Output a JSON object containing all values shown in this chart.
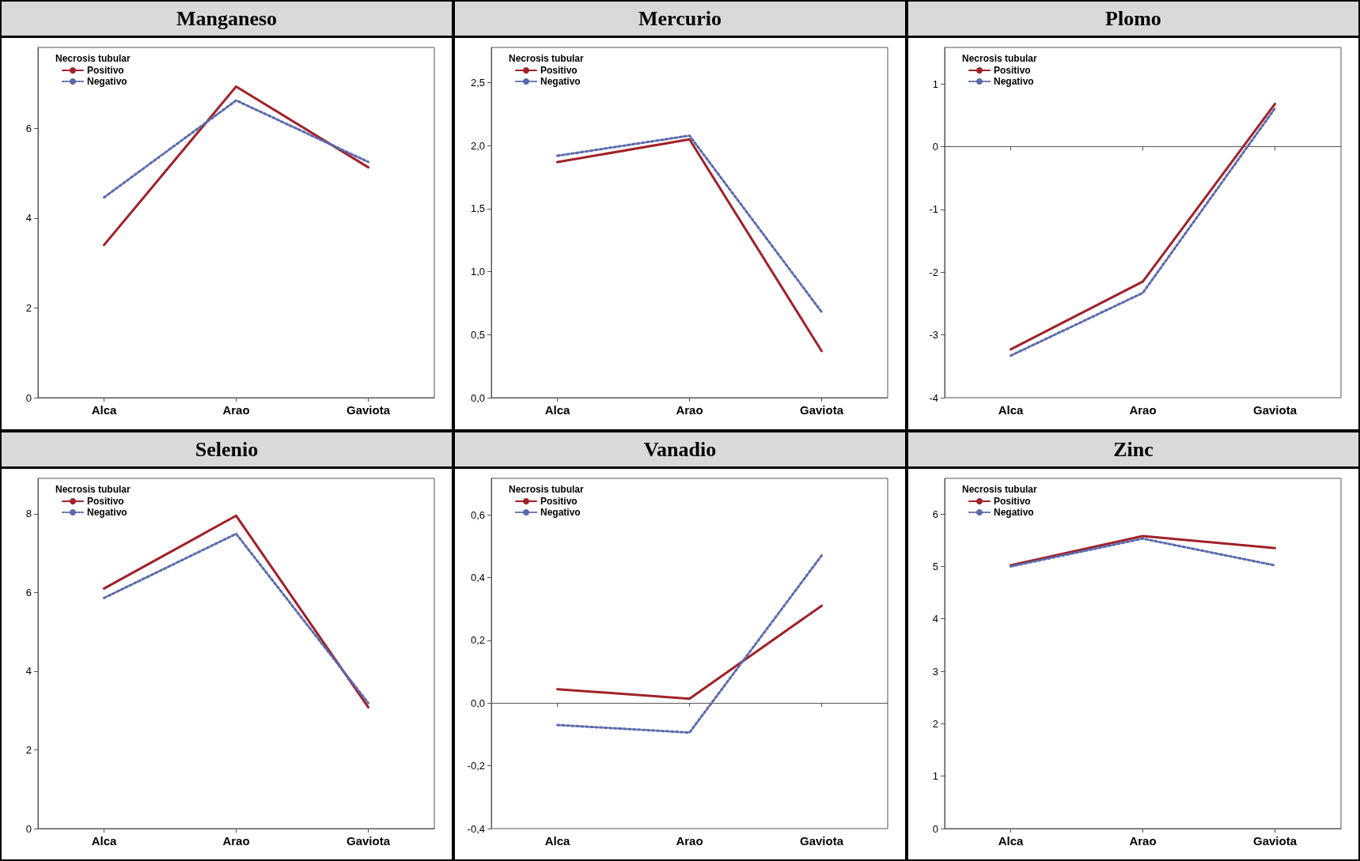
{
  "chart_data": [
    {
      "type": "line",
      "title": "Manganeso",
      "legend_title": "Necrosis tubular",
      "legend": "top left",
      "marker": "none",
      "categories": [
        "Alca",
        "Arao",
        "Gaviota"
      ],
      "ylim": [
        0,
        7.8
      ],
      "yticks": [
        0,
        2,
        4,
        6
      ],
      "series": [
        {
          "name": "Positivo",
          "color": "#a0212a",
          "line_style": "solid",
          "values": [
            3.4,
            6.93,
            5.13
          ]
        },
        {
          "name": "Negativo",
          "color": "#5b6aad",
          "line_style": "dotted",
          "values": [
            4.46,
            6.62,
            5.25
          ]
        }
      ]
    },
    {
      "type": "line",
      "title": "Mercurio",
      "legend_title": "Necrosis tubular",
      "legend": "top left",
      "marker": "none",
      "categories": [
        "Alca",
        "Arao",
        "Gaviota"
      ],
      "ylim": [
        0,
        2.78
      ],
      "yticks": [
        {
          "value": 0,
          "label": "0,0"
        },
        {
          "value": 0.5,
          "label": "0,5"
        },
        {
          "value": 1,
          "label": "1,0"
        },
        {
          "value": 1.5,
          "label": "1,5"
        },
        {
          "value": 2,
          "label": "2,0"
        },
        {
          "value": 2.5,
          "label": "2,5"
        }
      ],
      "series": [
        {
          "name": "Positivo",
          "color": "#a0212a",
          "line_style": "solid",
          "values": [
            1.87,
            2.05,
            0.37
          ]
        },
        {
          "name": "Negativo",
          "color": "#5b6aad",
          "line_style": "dotted",
          "values": [
            1.92,
            2.08,
            0.68
          ]
        }
      ]
    },
    {
      "type": "line",
      "title": "Plomo",
      "legend_title": "Necrosis tubular",
      "legend": "top left",
      "marker": "none",
      "categories": [
        "Alca",
        "Arao",
        "Gaviota"
      ],
      "ylim": [
        -4,
        1.58
      ],
      "yticks": [
        -4,
        -3,
        -2,
        -1,
        0,
        1
      ],
      "series": [
        {
          "name": "Positivo",
          "color": "#a0212a",
          "line_style": "solid",
          "values": [
            -3.23,
            -2.15,
            0.68
          ]
        },
        {
          "name": "Negativo",
          "color": "#5b6aad",
          "line_style": "dotted",
          "values": [
            -3.33,
            -2.33,
            0.61
          ]
        }
      ]
    },
    {
      "type": "line",
      "title": "Selenio",
      "legend_title": "Necrosis tubular",
      "legend": "top left",
      "marker": "none",
      "categories": [
        "Alca",
        "Arao",
        "Gaviota"
      ],
      "ylim": [
        0,
        8.9
      ],
      "yticks": [
        0,
        2,
        4,
        6,
        8
      ],
      "series": [
        {
          "name": "Positivo",
          "color": "#a0212a",
          "line_style": "solid",
          "values": [
            6.1,
            7.95,
            3.08
          ]
        },
        {
          "name": "Negativo",
          "color": "#5b6aad",
          "line_style": "dotted",
          "values": [
            5.86,
            7.49,
            3.19
          ]
        }
      ]
    },
    {
      "type": "line",
      "title": "Vanadio",
      "legend_title": "Necrosis tubular",
      "legend": "top left",
      "marker": "none",
      "categories": [
        "Alca",
        "Arao",
        "Gaviota"
      ],
      "ylim": [
        -0.4,
        0.716
      ],
      "yticks": [
        {
          "value": -0.4,
          "label": "-0,4"
        },
        {
          "value": -0.2,
          "label": "-0,2"
        },
        {
          "value": 0,
          "label": "0,0"
        },
        {
          "value": 0.2,
          "label": "0,2"
        },
        {
          "value": 0.4,
          "label": "0,4"
        },
        {
          "value": 0.6,
          "label": "0,6"
        }
      ],
      "series": [
        {
          "name": "Positivo",
          "color": "#a0212a",
          "line_style": "solid",
          "values": [
            0.044,
            0.014,
            0.31
          ]
        },
        {
          "name": "Negativo",
          "color": "#5b6aad",
          "line_style": "dotted",
          "values": [
            -0.07,
            -0.094,
            0.47
          ]
        }
      ]
    },
    {
      "type": "line",
      "title": "Zinc",
      "legend_title": "Necrosis tubular",
      "legend": "top left",
      "marker": "none",
      "categories": [
        "Alca",
        "Arao",
        "Gaviota"
      ],
      "ylim": [
        0,
        6.68
      ],
      "yticks": [
        0,
        1,
        2,
        3,
        4,
        5,
        6
      ],
      "series": [
        {
          "name": "Positivo",
          "color": "#a0212a",
          "line_style": "solid",
          "values": [
            5.02,
            5.58,
            5.35
          ]
        },
        {
          "name": "Negativo",
          "color": "#5b6aad",
          "line_style": "dotted",
          "values": [
            5.0,
            5.53,
            5.02
          ]
        }
      ]
    }
  ]
}
